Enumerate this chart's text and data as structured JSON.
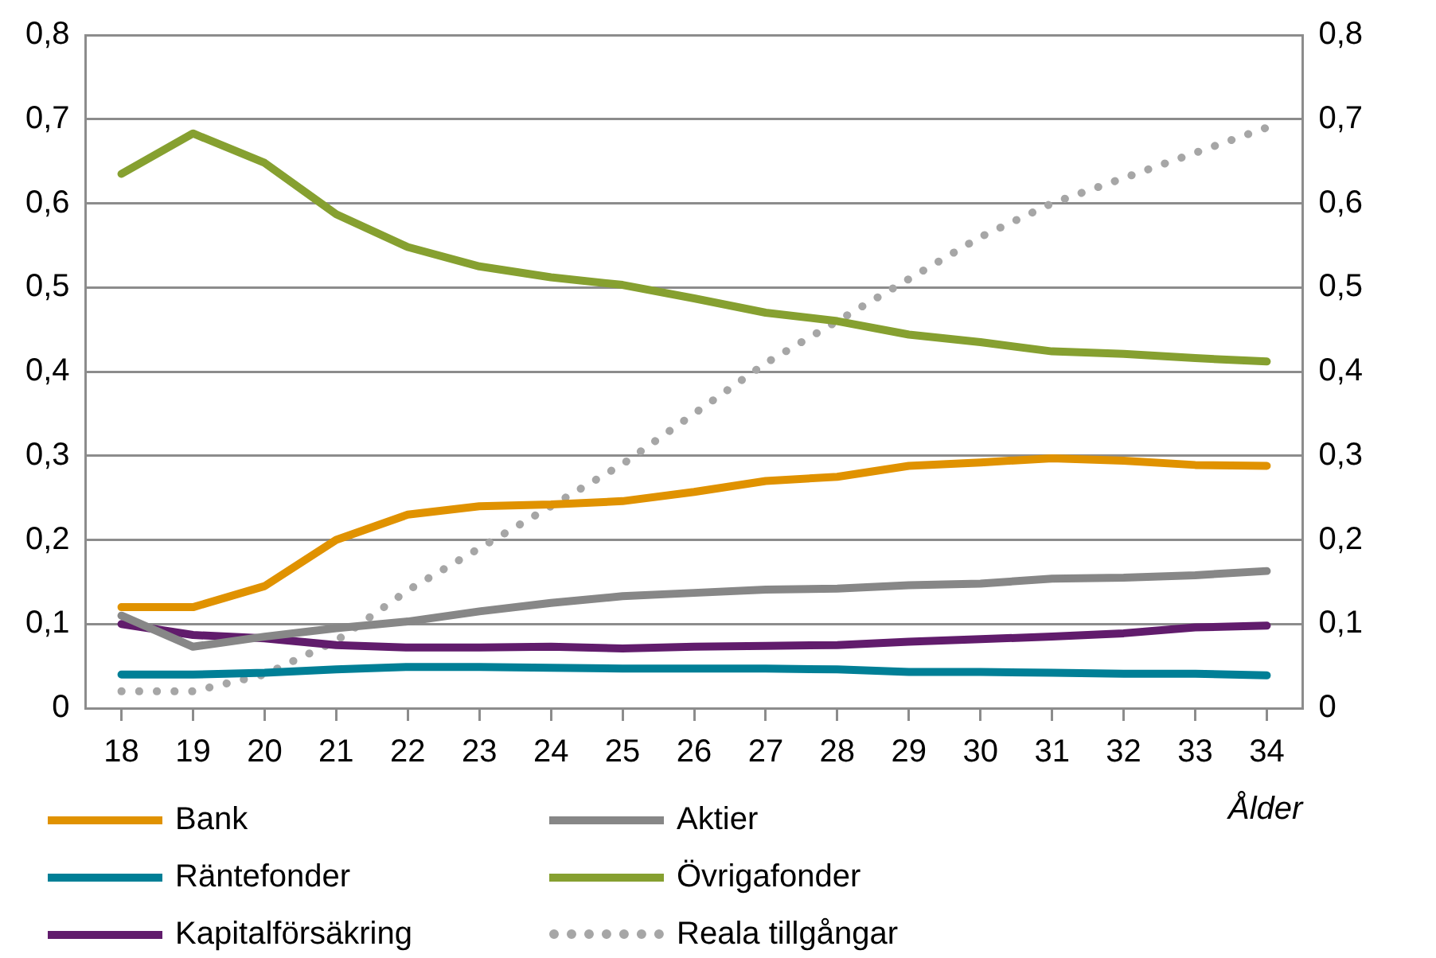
{
  "chart_data": {
    "type": "line",
    "xlabel": "Ålder",
    "categories": [
      "18",
      "19",
      "20",
      "21",
      "22",
      "23",
      "24",
      "25",
      "26",
      "27",
      "28",
      "29",
      "30",
      "31",
      "32",
      "33",
      "34"
    ],
    "series": [
      {
        "name": "Bank",
        "color": "#e09200",
        "values": [
          0.12,
          0.12,
          0.145,
          0.2,
          0.23,
          0.24,
          0.242,
          0.246,
          0.257,
          0.27,
          0.275,
          0.288,
          0.292,
          0.297,
          0.294,
          0.289,
          0.288
        ]
      },
      {
        "name": "Aktier",
        "color": "#878787",
        "values": [
          0.11,
          0.073,
          0.085,
          0.095,
          0.103,
          0.115,
          0.125,
          0.133,
          0.137,
          0.141,
          0.142,
          0.146,
          0.148,
          0.154,
          0.155,
          0.158,
          0.163
        ]
      },
      {
        "name": "Räntefonder",
        "color": "#007f96",
        "values": [
          0.04,
          0.04,
          0.042,
          0.046,
          0.049,
          0.049,
          0.048,
          0.047,
          0.047,
          0.047,
          0.046,
          0.043,
          0.043,
          0.042,
          0.041,
          0.041,
          0.039
        ]
      },
      {
        "name": "Övrigafonder",
        "color": "#86a030",
        "values": [
          0.635,
          0.683,
          0.648,
          0.587,
          0.548,
          0.525,
          0.512,
          0.503,
          0.487,
          0.47,
          0.46,
          0.444,
          0.435,
          0.424,
          0.421,
          0.416,
          0.412
        ]
      },
      {
        "name": "Kapitalförsäkring",
        "color": "#611c6c",
        "values": [
          0.1,
          0.087,
          0.083,
          0.075,
          0.072,
          0.072,
          0.073,
          0.071,
          0.073,
          0.074,
          0.075,
          0.079,
          0.082,
          0.085,
          0.089,
          0.096,
          0.098
        ]
      },
      {
        "name": "Reala tillgångar",
        "color": "#a6a6a6",
        "line_style": "dotted",
        "values": [
          0.02,
          0.02,
          0.04,
          0.08,
          0.14,
          0.19,
          0.24,
          0.29,
          0.35,
          0.41,
          0.46,
          0.51,
          0.56,
          0.6,
          0.63,
          0.66,
          0.69
        ]
      }
    ],
    "ylim": [
      0,
      0.8
    ],
    "yticks": [
      0,
      {
        "value": 0.1,
        "label": "0,1"
      },
      {
        "value": 0.2,
        "label": "0,2"
      },
      {
        "value": 0.3,
        "label": "0,3"
      },
      {
        "value": 0.4,
        "label": "0,4"
      },
      {
        "value": 0.5,
        "label": "0,5"
      },
      {
        "value": 0.6,
        "label": "0,6"
      },
      {
        "value": 0.7,
        "label": "0,7"
      },
      {
        "value": 0.8,
        "label": "0,8"
      }
    ],
    "y2lim": [
      0,
      0.8
    ],
    "y2ticks": [
      0,
      {
        "value": 0.1,
        "label": "0,1"
      },
      {
        "value": 0.2,
        "label": "0,2"
      },
      {
        "value": 0.3,
        "label": "0,3"
      },
      {
        "value": 0.4,
        "label": "0,4"
      },
      {
        "value": 0.5,
        "label": "0,5"
      },
      {
        "value": 0.6,
        "label": "0,6"
      },
      {
        "value": 0.7,
        "label": "0,7"
      },
      {
        "value": 0.8,
        "label": "0,8"
      }
    ],
    "grid": "y",
    "legend": "bottom",
    "marker": "none",
    "line_style": "solid"
  }
}
